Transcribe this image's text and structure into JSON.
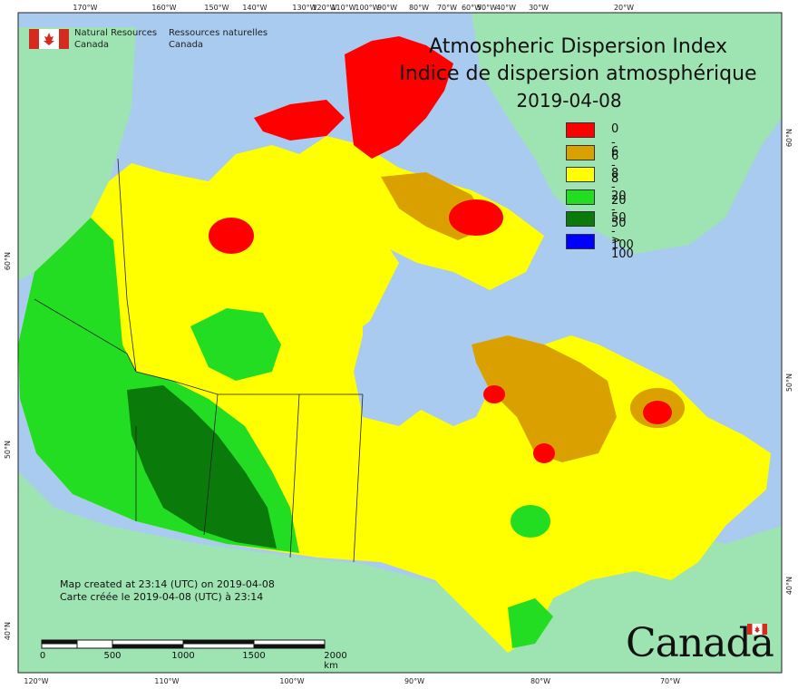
{
  "title": {
    "line1": "Atmospheric Dispersion Index",
    "line2": "Indice de dispersion atmosphérique",
    "date": "2019-04-08"
  },
  "agency": {
    "english": [
      "Natural Resources",
      "Canada"
    ],
    "french": [
      "Ressources naturelles",
      "Canada"
    ]
  },
  "legend": [
    {
      "label": "0 - 6",
      "color": "#ff0000"
    },
    {
      "label": "6 - 8",
      "color": "#d9a000"
    },
    {
      "label": "8 - 20",
      "color": "#ffff00"
    },
    {
      "label": "20 - 50",
      "color": "#22dd22"
    },
    {
      "label": "50 - 100",
      "color": "#0a7a0a"
    },
    {
      "label": "> 100",
      "color": "#0000ff"
    }
  ],
  "credits": {
    "line1": "Map created at 23:14 (UTC) on 2019-04-08",
    "line2": "Carte créée le 2019-04-08 (UTC) à 23:14"
  },
  "scale": {
    "labels": [
      "0",
      "500",
      "1000",
      "1500",
      "2000  km"
    ]
  },
  "graticule": {
    "top": [
      "170°W",
      "160°W",
      "150°W",
      "140°W",
      "130°W",
      "120°W",
      "110°W",
      "100°W",
      "90°W",
      "80°W",
      "70°W",
      "60°W",
      "50°W",
      "40°W",
      "30°W",
      "20°W"
    ],
    "bottom": [
      "120°W",
      "110°W",
      "100°W",
      "90°W",
      "80°W",
      "70°W"
    ],
    "left": [
      "60°N",
      "50°N",
      "40°N"
    ],
    "right": [
      "60°N",
      "50°N",
      "40°N"
    ]
  },
  "wordmark": "Canada",
  "colors": {
    "ocean": "#a9cbef",
    "land_outside": "#9ee3b2",
    "border": "#222222"
  }
}
